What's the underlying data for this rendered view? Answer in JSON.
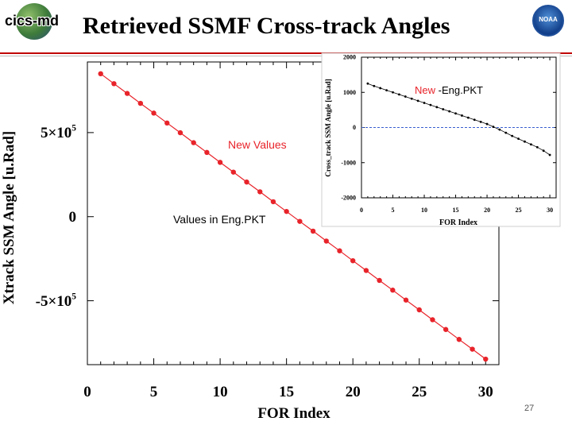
{
  "slide": {
    "title": "Retrieved SSMF Cross-track Angles",
    "logo_left_text": "cics-md",
    "logo_right_text": "NOAA",
    "page_number": "27"
  },
  "chart_data": [
    {
      "type": "line",
      "xlabel": "FOR Index",
      "ylabel": "Xtrack SSM Angle [u.Rad]",
      "xlim": [
        0,
        31
      ],
      "ylim": [
        -880000,
        920000
      ],
      "x_ticks": [
        "0",
        "5",
        "10",
        "15",
        "20",
        "25",
        "30"
      ],
      "x_tick_values": [
        0,
        5,
        10,
        15,
        20,
        25,
        30
      ],
      "y_ticks": [
        "5×10",
        "0",
        "-5×10"
      ],
      "y_tick_exponents": [
        "5",
        "",
        "5"
      ],
      "y_tick_values": [
        500000,
        0,
        -500000
      ],
      "annotations": [
        "New Values",
        "Values in Eng.PKT"
      ],
      "series": [
        {
          "color": "#e8232a",
          "x": [
            1,
            2,
            3,
            4,
            5,
            6,
            7,
            8,
            9,
            10,
            11,
            12,
            13,
            14,
            15,
            16,
            17,
            18,
            19,
            20,
            21,
            22,
            23,
            24,
            25,
            26,
            27,
            28,
            29,
            30
          ],
          "y": [
            850000,
            791000,
            733000,
            674000,
            616000,
            557000,
            499000,
            440000,
            382000,
            323000,
            265000,
            206000,
            148000,
            89000,
            31000,
            -28000,
            -86000,
            -145000,
            -203000,
            -262000,
            -320000,
            -379000,
            -437000,
            -496000,
            -554000,
            -613000,
            -671000,
            -730000,
            -788000,
            -847000
          ]
        }
      ]
    },
    {
      "type": "line",
      "title": "New -Eng.PKT",
      "xlabel": "FOR Index",
      "ylabel": "Cross_track SSM Angle [u.Rad]",
      "xlim": [
        0,
        31
      ],
      "ylim": [
        -2000,
        2000
      ],
      "x_ticks": [
        "0",
        "5",
        "10",
        "15",
        "20",
        "25",
        "30"
      ],
      "x_tick_values": [
        0,
        5,
        10,
        15,
        20,
        25,
        30
      ],
      "y_ticks": [
        "2000",
        "1000",
        "0",
        "-1000",
        "-2000"
      ],
      "y_tick_values": [
        2000,
        1000,
        0,
        -1000,
        -2000
      ],
      "reference_line": {
        "y": 0,
        "color": "#3a5fd0",
        "style": "dashed"
      },
      "series": [
        {
          "color": "#000000",
          "x": [
            1,
            2,
            3,
            4,
            5,
            6,
            7,
            8,
            9,
            10,
            11,
            12,
            13,
            14,
            15,
            16,
            17,
            18,
            19,
            20,
            21,
            22,
            23,
            24,
            25,
            26,
            27,
            28,
            29,
            30
          ],
          "y": [
            1250,
            1180,
            1120,
            1060,
            1000,
            940,
            880,
            820,
            760,
            700,
            640,
            580,
            520,
            460,
            400,
            340,
            280,
            220,
            160,
            100,
            20,
            -60,
            -150,
            -240,
            -320,
            -400,
            -480,
            -560,
            -660,
            -780
          ]
        }
      ]
    }
  ]
}
